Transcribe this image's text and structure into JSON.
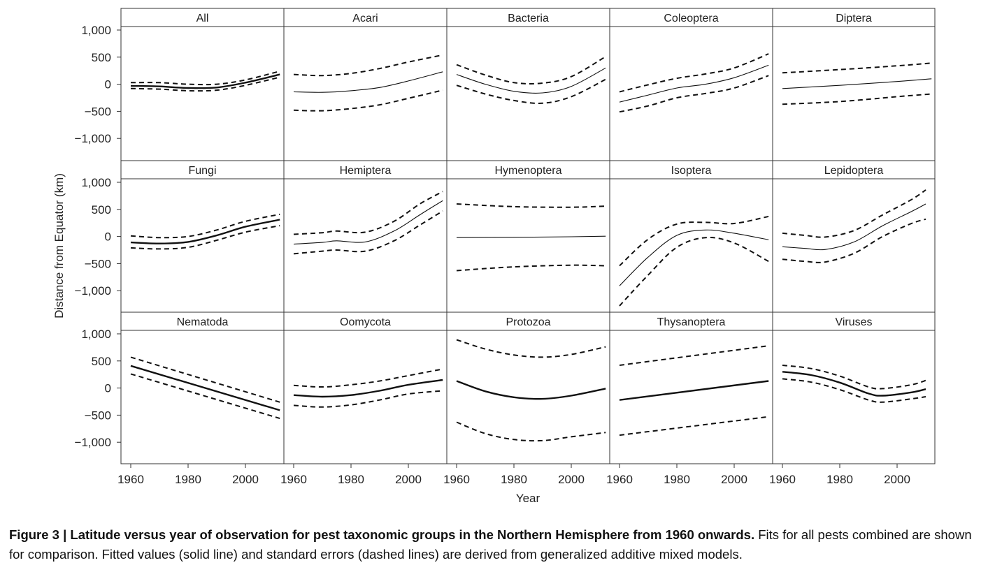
{
  "chart_data": {
    "type": "line",
    "ylabel": "Distance from Equator (km)",
    "xlabel": "Year",
    "x_ticks": [
      1960,
      1980,
      2000
    ],
    "y_ticks": [
      1000,
      500,
      0,
      -500,
      -1000
    ],
    "y_tick_labels": [
      "1,000",
      "500",
      "0",
      "−500",
      "−1,000"
    ],
    "xlim": [
      1957,
      2017
    ],
    "ylim": [
      -1400,
      1000
    ],
    "legend": "none",
    "panels": [
      {
        "title": "All",
        "fit_style": "bold",
        "fit": [
          [
            1960,
            -30
          ],
          [
            1970,
            -40
          ],
          [
            1980,
            -70
          ],
          [
            1990,
            -60
          ],
          [
            2000,
            30
          ],
          [
            2012,
            180
          ]
        ],
        "upper": [
          [
            1960,
            30
          ],
          [
            1970,
            30
          ],
          [
            1980,
            0
          ],
          [
            1990,
            0
          ],
          [
            2000,
            80
          ],
          [
            2012,
            240
          ]
        ],
        "lower": [
          [
            1960,
            -80
          ],
          [
            1970,
            -90
          ],
          [
            1980,
            -120
          ],
          [
            1990,
            -110
          ],
          [
            2000,
            -20
          ],
          [
            2012,
            130
          ]
        ]
      },
      {
        "title": "Acari",
        "fit_style": "thin",
        "fit": [
          [
            1960,
            -140
          ],
          [
            1970,
            -150
          ],
          [
            1980,
            -120
          ],
          [
            1990,
            -60
          ],
          [
            2000,
            60
          ],
          [
            2012,
            230
          ]
        ],
        "upper": [
          [
            1960,
            180
          ],
          [
            1970,
            160
          ],
          [
            1980,
            200
          ],
          [
            1990,
            290
          ],
          [
            2000,
            410
          ],
          [
            2012,
            540
          ]
        ],
        "lower": [
          [
            1960,
            -480
          ],
          [
            1970,
            -490
          ],
          [
            1980,
            -450
          ],
          [
            1990,
            -380
          ],
          [
            2000,
            -260
          ],
          [
            2012,
            -110
          ]
        ]
      },
      {
        "title": "Bacteria",
        "fit_style": "thin",
        "fit": [
          [
            1960,
            180
          ],
          [
            1970,
            0
          ],
          [
            1980,
            -130
          ],
          [
            1990,
            -160
          ],
          [
            2000,
            -40
          ],
          [
            2012,
            300
          ]
        ],
        "upper": [
          [
            1960,
            360
          ],
          [
            1970,
            170
          ],
          [
            1980,
            30
          ],
          [
            1990,
            20
          ],
          [
            2000,
            140
          ],
          [
            2012,
            510
          ]
        ],
        "lower": [
          [
            1960,
            -20
          ],
          [
            1970,
            -180
          ],
          [
            1980,
            -300
          ],
          [
            1990,
            -350
          ],
          [
            2000,
            -230
          ],
          [
            2012,
            90
          ]
        ]
      },
      {
        "title": "Coleoptera",
        "fit_style": "thin",
        "fit": [
          [
            1960,
            -330
          ],
          [
            1970,
            -200
          ],
          [
            1980,
            -70
          ],
          [
            1990,
            0
          ],
          [
            2000,
            120
          ],
          [
            2012,
            350
          ]
        ],
        "upper": [
          [
            1960,
            -140
          ],
          [
            1970,
            -10
          ],
          [
            1980,
            110
          ],
          [
            1990,
            190
          ],
          [
            2000,
            300
          ],
          [
            2012,
            560
          ]
        ],
        "lower": [
          [
            1960,
            -510
          ],
          [
            1970,
            -400
          ],
          [
            1980,
            -250
          ],
          [
            1990,
            -170
          ],
          [
            2000,
            -70
          ],
          [
            2012,
            160
          ]
        ]
      },
      {
        "title": "Diptera",
        "fit_style": "thin",
        "fit": [
          [
            1960,
            -80
          ],
          [
            1980,
            -20
          ],
          [
            2000,
            50
          ],
          [
            2012,
            100
          ]
        ],
        "upper": [
          [
            1960,
            210
          ],
          [
            1980,
            270
          ],
          [
            2000,
            340
          ],
          [
            2012,
            390
          ]
        ],
        "lower": [
          [
            1960,
            -370
          ],
          [
            1980,
            -320
          ],
          [
            2000,
            -230
          ],
          [
            2012,
            -180
          ]
        ]
      },
      {
        "title": "Fungi",
        "fit_style": "bold",
        "fit": [
          [
            1960,
            -110
          ],
          [
            1970,
            -130
          ],
          [
            1980,
            -100
          ],
          [
            1990,
            20
          ],
          [
            2000,
            180
          ],
          [
            2012,
            310
          ]
        ],
        "upper": [
          [
            1960,
            10
          ],
          [
            1970,
            -20
          ],
          [
            1980,
            0
          ],
          [
            1990,
            120
          ],
          [
            2000,
            280
          ],
          [
            2012,
            410
          ]
        ],
        "lower": [
          [
            1960,
            -210
          ],
          [
            1970,
            -230
          ],
          [
            1980,
            -200
          ],
          [
            1990,
            -70
          ],
          [
            2000,
            80
          ],
          [
            2012,
            200
          ]
        ]
      },
      {
        "title": "Hemiptera",
        "fit_style": "thin",
        "fit": [
          [
            1960,
            -140
          ],
          [
            1970,
            -110
          ],
          [
            1975,
            -80
          ],
          [
            1985,
            -100
          ],
          [
            1995,
            100
          ],
          [
            2004,
            400
          ],
          [
            2012,
            660
          ]
        ],
        "upper": [
          [
            1960,
            40
          ],
          [
            1970,
            70
          ],
          [
            1975,
            100
          ],
          [
            1985,
            80
          ],
          [
            1995,
            280
          ],
          [
            2004,
            600
          ],
          [
            2012,
            830
          ]
        ],
        "lower": [
          [
            1960,
            -320
          ],
          [
            1970,
            -270
          ],
          [
            1975,
            -250
          ],
          [
            1985,
            -270
          ],
          [
            1995,
            -80
          ],
          [
            2004,
            210
          ],
          [
            2012,
            470
          ]
        ]
      },
      {
        "title": "Hymenoptera",
        "fit_style": "thin",
        "fit": [
          [
            1960,
            -20
          ],
          [
            1980,
            -15
          ],
          [
            2000,
            -5
          ],
          [
            2012,
            5
          ]
        ],
        "upper": [
          [
            1960,
            600
          ],
          [
            1980,
            550
          ],
          [
            2000,
            540
          ],
          [
            2012,
            560
          ]
        ],
        "lower": [
          [
            1960,
            -630
          ],
          [
            1980,
            -560
          ],
          [
            2000,
            -530
          ],
          [
            2012,
            -540
          ]
        ]
      },
      {
        "title": "Isoptera",
        "fit_style": "thin",
        "fit": [
          [
            1960,
            -910
          ],
          [
            1970,
            -380
          ],
          [
            1980,
            20
          ],
          [
            1990,
            120
          ],
          [
            2000,
            60
          ],
          [
            2012,
            -60
          ]
        ],
        "upper": [
          [
            1960,
            -540
          ],
          [
            1970,
            -50
          ],
          [
            1980,
            230
          ],
          [
            1990,
            260
          ],
          [
            2000,
            240
          ],
          [
            2012,
            370
          ]
        ],
        "lower": [
          [
            1960,
            -1280
          ],
          [
            1970,
            -710
          ],
          [
            1980,
            -200
          ],
          [
            1990,
            -20
          ],
          [
            2000,
            -120
          ],
          [
            2012,
            -460
          ]
        ]
      },
      {
        "title": "Lepidoptera",
        "fit_style": "thin",
        "fit": [
          [
            1960,
            -190
          ],
          [
            1968,
            -220
          ],
          [
            1975,
            -240
          ],
          [
            1985,
            -100
          ],
          [
            1995,
            200
          ],
          [
            2005,
            460
          ],
          [
            2010,
            600
          ]
        ],
        "upper": [
          [
            1960,
            60
          ],
          [
            1968,
            20
          ],
          [
            1975,
            -10
          ],
          [
            1985,
            110
          ],
          [
            1995,
            400
          ],
          [
            2005,
            680
          ],
          [
            2010,
            860
          ]
        ],
        "lower": [
          [
            1960,
            -420
          ],
          [
            1968,
            -460
          ],
          [
            1975,
            -470
          ],
          [
            1985,
            -310
          ],
          [
            1995,
            0
          ],
          [
            2005,
            240
          ],
          [
            2010,
            320
          ]
        ]
      },
      {
        "title": "Nematoda",
        "fit_style": "bold",
        "fit": [
          [
            1960,
            410
          ],
          [
            2012,
            -410
          ]
        ],
        "upper": [
          [
            1960,
            570
          ],
          [
            2012,
            -260
          ]
        ],
        "lower": [
          [
            1960,
            260
          ],
          [
            2012,
            -560
          ]
        ]
      },
      {
        "title": "Oomycota",
        "fit_style": "bold",
        "fit": [
          [
            1960,
            -130
          ],
          [
            1970,
            -160
          ],
          [
            1980,
            -130
          ],
          [
            1990,
            -50
          ],
          [
            2000,
            60
          ],
          [
            2012,
            150
          ]
        ],
        "upper": [
          [
            1960,
            50
          ],
          [
            1970,
            20
          ],
          [
            1980,
            60
          ],
          [
            1990,
            130
          ],
          [
            2000,
            230
          ],
          [
            2012,
            350
          ]
        ],
        "lower": [
          [
            1960,
            -320
          ],
          [
            1970,
            -350
          ],
          [
            1980,
            -310
          ],
          [
            1990,
            -220
          ],
          [
            2000,
            -110
          ],
          [
            2012,
            -50
          ]
        ]
      },
      {
        "title": "Protozoa",
        "fit_style": "bold",
        "fit": [
          [
            1960,
            130
          ],
          [
            1970,
            -60
          ],
          [
            1980,
            -170
          ],
          [
            1990,
            -200
          ],
          [
            2000,
            -140
          ],
          [
            2012,
            -10
          ]
        ],
        "upper": [
          [
            1960,
            890
          ],
          [
            1970,
            720
          ],
          [
            1980,
            610
          ],
          [
            1990,
            570
          ],
          [
            2000,
            620
          ],
          [
            2012,
            760
          ]
        ],
        "lower": [
          [
            1960,
            -630
          ],
          [
            1970,
            -840
          ],
          [
            1980,
            -950
          ],
          [
            1990,
            -970
          ],
          [
            2000,
            -900
          ],
          [
            2012,
            -820
          ]
        ]
      },
      {
        "title": "Thysanoptera",
        "fit_style": "bold",
        "fit": [
          [
            1960,
            -220
          ],
          [
            2012,
            130
          ]
        ],
        "upper": [
          [
            1960,
            420
          ],
          [
            2012,
            780
          ]
        ],
        "lower": [
          [
            1960,
            -870
          ],
          [
            2012,
            -530
          ]
        ]
      },
      {
        "title": "Viruses",
        "fit_style": "bold",
        "fit": [
          [
            1960,
            300
          ],
          [
            1970,
            240
          ],
          [
            1980,
            100
          ],
          [
            1990,
            -100
          ],
          [
            1995,
            -140
          ],
          [
            2005,
            -80
          ],
          [
            2010,
            -20
          ]
        ],
        "upper": [
          [
            1960,
            420
          ],
          [
            1970,
            360
          ],
          [
            1980,
            220
          ],
          [
            1990,
            20
          ],
          [
            1995,
            -10
          ],
          [
            2005,
            60
          ],
          [
            2010,
            140
          ]
        ],
        "lower": [
          [
            1960,
            170
          ],
          [
            1970,
            110
          ],
          [
            1980,
            -30
          ],
          [
            1990,
            -220
          ],
          [
            1995,
            -260
          ],
          [
            2005,
            -200
          ],
          [
            2010,
            -160
          ]
        ]
      }
    ]
  },
  "caption": {
    "bold": "Figure 3 | Latitude versus year of observation for pest taxonomic groups in the Northern Hemisphere from 1960 onwards.",
    "text": " Fits for all pests combined are shown for comparison. Fitted values (solid line) and standard errors (dashed lines) are derived from generalized additive mixed models."
  }
}
